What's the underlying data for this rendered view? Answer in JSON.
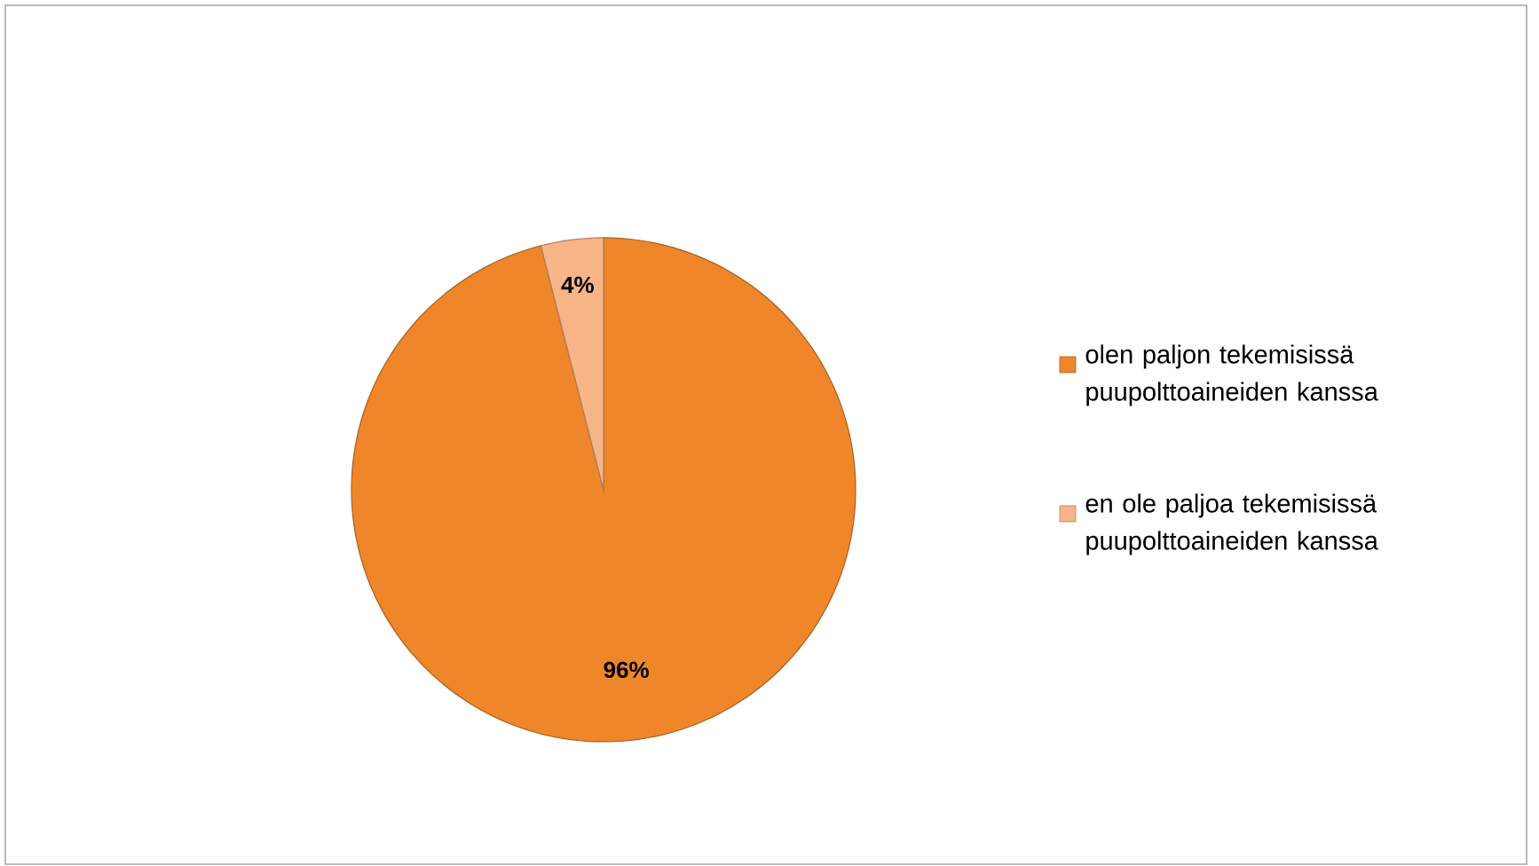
{
  "chart_data": {
    "type": "pie",
    "categories": [
      "olen paljon tekemisissä puupolttoaineiden kanssa",
      "en ole paljoa tekemisissä puupolttoaineiden kanssa"
    ],
    "values": [
      96,
      4
    ],
    "colors": [
      "#f0862a",
      "#f7b587"
    ],
    "value_labels": [
      "96%",
      "4%"
    ],
    "legend": "right"
  }
}
